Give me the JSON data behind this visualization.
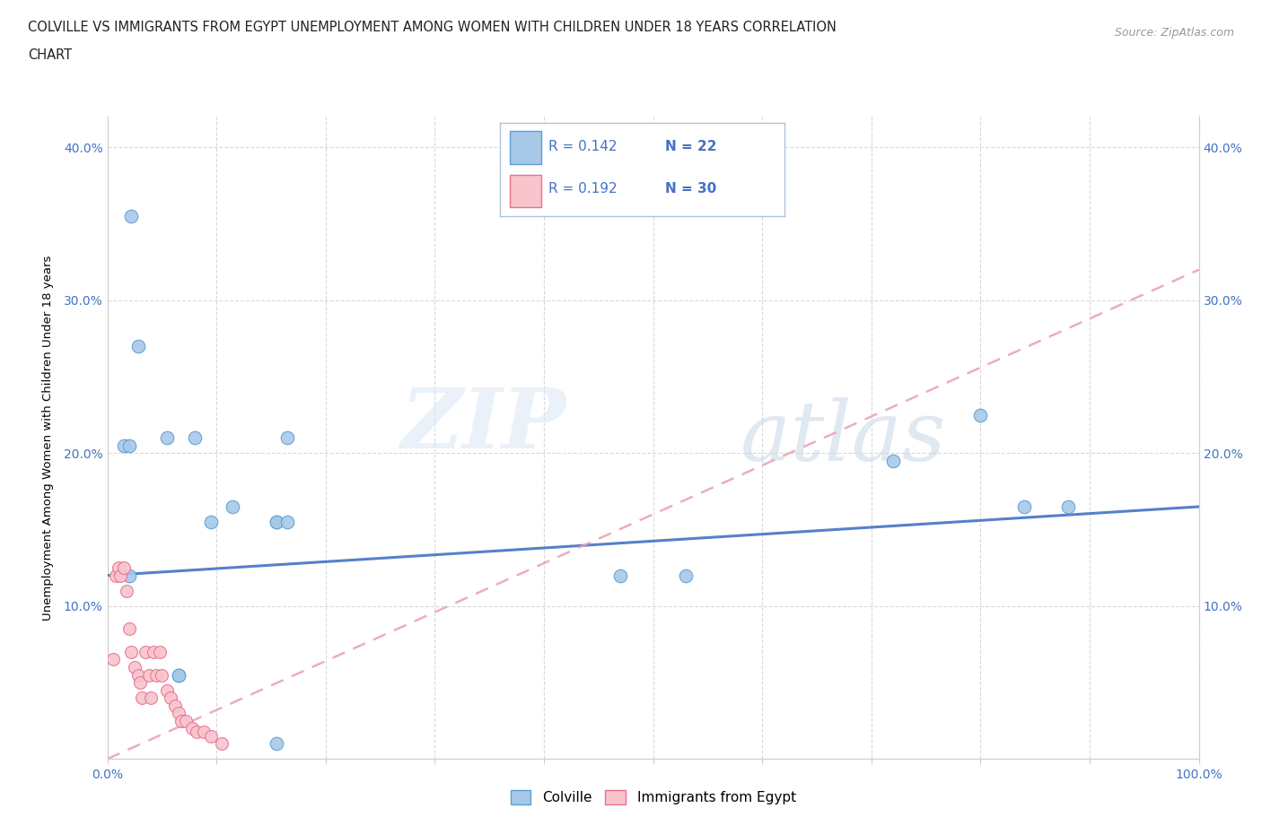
{
  "title_line1": "COLVILLE VS IMMIGRANTS FROM EGYPT UNEMPLOYMENT AMONG WOMEN WITH CHILDREN UNDER 18 YEARS CORRELATION",
  "title_line2": "CHART",
  "source_text": "Source: ZipAtlas.com",
  "ylabel": "Unemployment Among Women with Children Under 18 years",
  "xlim": [
    0,
    1.0
  ],
  "ylim": [
    0,
    0.42
  ],
  "x_ticks": [
    0.0,
    0.1,
    0.2,
    0.3,
    0.4,
    0.5,
    0.6,
    0.7,
    0.8,
    0.9,
    1.0
  ],
  "x_tick_labels": [
    "0.0%",
    "",
    "",
    "",
    "",
    "",
    "",
    "",
    "",
    "",
    "100.0%"
  ],
  "y_ticks": [
    0.0,
    0.1,
    0.2,
    0.3,
    0.4
  ],
  "y_tick_labels": [
    "",
    "10.0%",
    "20.0%",
    "30.0%",
    "40.0%"
  ],
  "colville_color": "#a8c8e8",
  "colville_edge": "#5a9fd4",
  "egypt_color": "#f9c4cc",
  "egypt_edge": "#e87090",
  "colville_R": 0.142,
  "colville_N": 22,
  "egypt_R": 0.192,
  "egypt_N": 30,
  "colville_x": [
    0.022,
    0.028,
    0.055,
    0.08,
    0.095,
    0.115,
    0.155,
    0.165,
    0.47,
    0.53,
    0.72,
    0.8,
    0.84,
    0.88,
    0.155,
    0.165,
    0.015,
    0.02,
    0.02,
    0.065,
    0.065,
    0.155
  ],
  "colville_y": [
    0.355,
    0.27,
    0.21,
    0.21,
    0.155,
    0.165,
    0.155,
    0.21,
    0.12,
    0.12,
    0.195,
    0.225,
    0.165,
    0.165,
    0.155,
    0.155,
    0.205,
    0.205,
    0.12,
    0.055,
    0.055,
    0.01
  ],
  "egypt_x": [
    0.005,
    0.008,
    0.01,
    0.012,
    0.015,
    0.018,
    0.02,
    0.022,
    0.025,
    0.028,
    0.03,
    0.032,
    0.035,
    0.038,
    0.04,
    0.042,
    0.045,
    0.048,
    0.05,
    0.055,
    0.058,
    0.062,
    0.065,
    0.068,
    0.072,
    0.078,
    0.082,
    0.088,
    0.095,
    0.105
  ],
  "egypt_y": [
    0.065,
    0.12,
    0.125,
    0.12,
    0.125,
    0.11,
    0.085,
    0.07,
    0.06,
    0.055,
    0.05,
    0.04,
    0.07,
    0.055,
    0.04,
    0.07,
    0.055,
    0.07,
    0.055,
    0.045,
    0.04,
    0.035,
    0.03,
    0.025,
    0.025,
    0.02,
    0.018,
    0.018,
    0.015,
    0.01
  ],
  "watermark_zip": "ZIP",
  "watermark_atlas": "atlas",
  "background_color": "#ffffff",
  "grid_color": "#d0d0d0",
  "trendline_colville_color": "#4472c4",
  "trendline_egypt_color": "#e8a0b0",
  "legend_border_color": "#b0c4d8",
  "legend_box_blue": "#a8c8e8",
  "legend_box_blue_edge": "#5a9fd4",
  "legend_box_pink": "#f9c4cc",
  "legend_box_pink_edge": "#e87090",
  "text_color_blue": "#4472c4",
  "colville_trendline_x": [
    0.0,
    1.0
  ],
  "colville_trendline_y": [
    0.12,
    0.165
  ],
  "egypt_trendline_x": [
    0.0,
    1.0
  ],
  "egypt_trendline_y": [
    0.0,
    0.32
  ]
}
